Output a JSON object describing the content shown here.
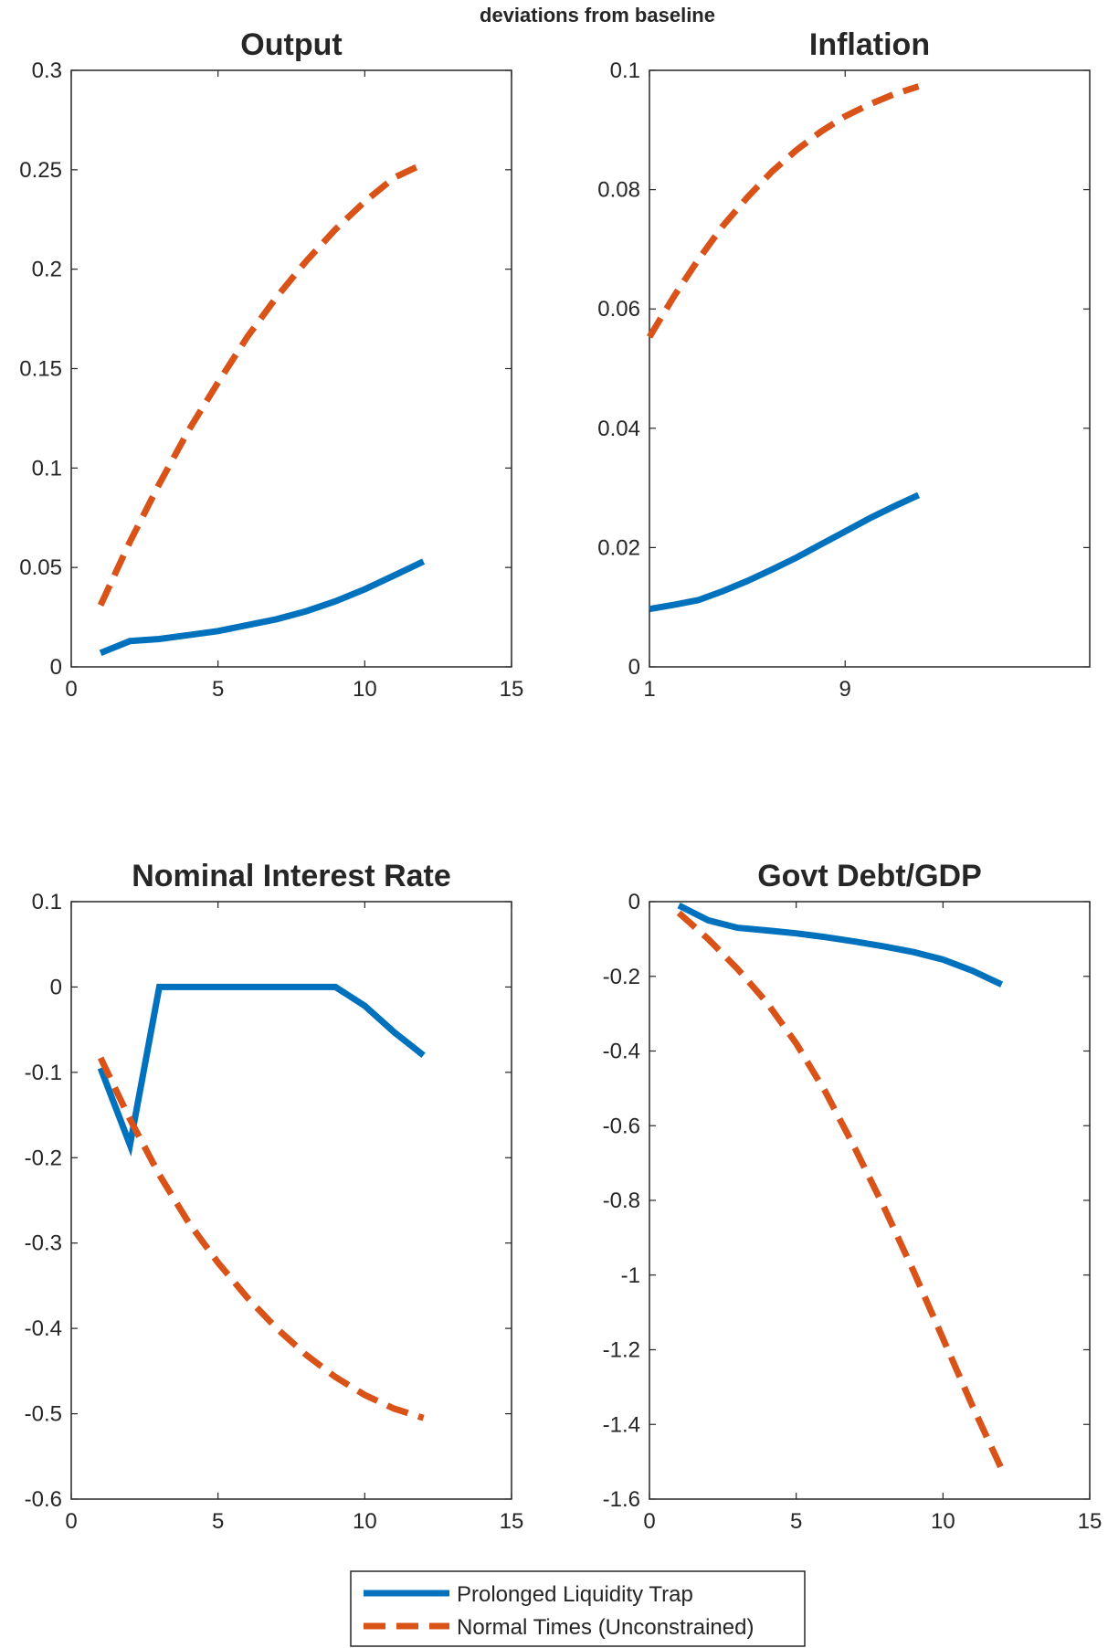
{
  "figure": {
    "suptitle": "deviations from baseline"
  },
  "colors": {
    "series1": "#0072bd",
    "series2": "#d95319",
    "axis": "#262626"
  },
  "legend": {
    "placement": "bottom-center",
    "entries": [
      {
        "label": "Prolonged Liquidity Trap",
        "style": "solid",
        "color": "#0072bd"
      },
      {
        "label": "Normal Times (Unconstrained)",
        "style": "dashed",
        "color": "#d95319"
      }
    ]
  },
  "chart_data": [
    {
      "type": "line",
      "title": "Output",
      "xlim": [
        0,
        15
      ],
      "ylim": [
        0,
        0.3
      ],
      "xticks": [
        0,
        5,
        10,
        15
      ],
      "xtick_labels": [
        "0",
        "5",
        "10",
        "15"
      ],
      "yticks": [
        0,
        0.05,
        0.1,
        0.15,
        0.2,
        0.25,
        0.3
      ],
      "ytick_labels": [
        "0",
        "0.05",
        "0.1",
        "0.15",
        "0.2",
        "0.25",
        "0.3"
      ],
      "x": [
        1,
        2,
        3,
        4,
        5,
        6,
        7,
        8,
        9,
        10,
        11,
        12
      ],
      "series": [
        {
          "name": "Prolonged Liquidity Trap",
          "values": [
            0.007,
            0.013,
            0.014,
            0.016,
            0.018,
            0.021,
            0.024,
            0.028,
            0.033,
            0.039,
            0.046,
            0.053
          ]
        },
        {
          "name": "Normal Times (Unconstrained)",
          "values": [
            0.031,
            0.063,
            0.092,
            0.119,
            0.143,
            0.166,
            0.186,
            0.204,
            0.22,
            0.234,
            0.246,
            0.253
          ]
        }
      ]
    },
    {
      "type": "line",
      "title": "Inflation",
      "xlim": [
        1,
        19
      ],
      "ylim": [
        0,
        0.1
      ],
      "xticks": [
        1,
        9
      ],
      "xtick_labels": [
        "1",
        "9"
      ],
      "yticks": [
        0,
        0.02,
        0.04,
        0.06,
        0.08,
        0.1
      ],
      "ytick_labels": [
        "0",
        "0.02",
        "0.04",
        "0.06",
        "0.08",
        "0.1"
      ],
      "x": [
        1,
        2,
        3,
        4,
        5,
        6,
        7,
        8,
        9,
        10,
        11,
        12
      ],
      "series": [
        {
          "name": "Prolonged Liquidity Trap",
          "values": [
            0.0097,
            0.0104,
            0.0112,
            0.0127,
            0.0144,
            0.0163,
            0.0183,
            0.0205,
            0.0227,
            0.0249,
            0.0269,
            0.0288
          ]
        },
        {
          "name": "Normal Times (Unconstrained)",
          "values": [
            0.0553,
            0.0621,
            0.0683,
            0.0739,
            0.0787,
            0.083,
            0.0866,
            0.0897,
            0.0923,
            0.0943,
            0.096,
            0.0973
          ]
        }
      ]
    },
    {
      "type": "line",
      "title": "Nominal Interest Rate",
      "xlim": [
        0,
        15
      ],
      "ylim": [
        -0.6,
        0.1
      ],
      "xticks": [
        0,
        5,
        10,
        15
      ],
      "xtick_labels": [
        "0",
        "5",
        "10",
        "15"
      ],
      "yticks": [
        -0.6,
        -0.5,
        -0.4,
        -0.3,
        -0.2,
        -0.1,
        0,
        0.1
      ],
      "ytick_labels": [
        "-0.6",
        "-0.5",
        "-0.4",
        "-0.3",
        "-0.2",
        "-0.1",
        "0",
        "0.1"
      ],
      "x": [
        1,
        2,
        3,
        4,
        5,
        6,
        7,
        8,
        9,
        10,
        11,
        12
      ],
      "series": [
        {
          "name": "Prolonged Liquidity Trap",
          "values": [
            -0.095,
            -0.185,
            0,
            0,
            0,
            0,
            0,
            0,
            0,
            -0.022,
            -0.053,
            -0.08
          ]
        },
        {
          "name": "Normal Times (Unconstrained)",
          "values": [
            -0.083,
            -0.155,
            -0.22,
            -0.276,
            -0.323,
            -0.364,
            -0.4,
            -0.431,
            -0.457,
            -0.478,
            -0.494,
            -0.505
          ]
        }
      ]
    },
    {
      "type": "line",
      "title": "Govt Debt/GDP",
      "xlim": [
        0,
        15
      ],
      "ylim": [
        -1.6,
        0
      ],
      "xticks": [
        0,
        5,
        10,
        15
      ],
      "xtick_labels": [
        "0",
        "5",
        "10",
        "15"
      ],
      "yticks": [
        -1.6,
        -1.4,
        -1.2,
        -1,
        -0.8,
        -0.6,
        -0.4,
        -0.2,
        0
      ],
      "ytick_labels": [
        "-1.6",
        "-1.4",
        "-1.2",
        "-1",
        "-0.8",
        "-0.6",
        "-0.4",
        "-0.2",
        "0"
      ],
      "x": [
        1,
        2,
        3,
        4,
        5,
        6,
        7,
        8,
        9,
        10,
        11,
        12
      ],
      "series": [
        {
          "name": "Prolonged Liquidity Trap",
          "values": [
            -0.01,
            -0.05,
            -0.07,
            -0.077,
            -0.085,
            -0.095,
            -0.107,
            -0.12,
            -0.135,
            -0.155,
            -0.185,
            -0.222
          ]
        },
        {
          "name": "Normal Times (Unconstrained)",
          "values": [
            -0.03,
            -0.1,
            -0.18,
            -0.27,
            -0.38,
            -0.51,
            -0.66,
            -0.82,
            -0.99,
            -1.17,
            -1.35,
            -1.52
          ]
        }
      ]
    }
  ]
}
